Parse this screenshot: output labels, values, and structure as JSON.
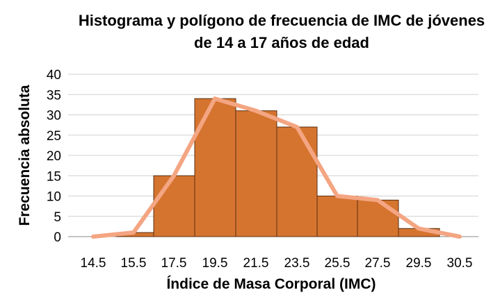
{
  "chart_data": {
    "type": "bar",
    "title_line1": "Histograma y polígono de frecuencia de IMC de jóvenes",
    "title_line2": "de 14 a 17 años de edad",
    "xlabel": "Índice de Masa Corporal (IMC)",
    "ylabel": "Frecuencia absoluta",
    "ylim": [
      0,
      40
    ],
    "yticks": [
      0,
      5,
      10,
      15,
      20,
      25,
      30,
      35,
      40
    ],
    "xticks": [
      "14.5",
      "15.5",
      "17.5",
      "19.5",
      "21.5",
      "23.5",
      "25.5",
      "27.5",
      "29.5",
      "30.5"
    ],
    "grid": true,
    "legend": "none",
    "histogram": {
      "name": "",
      "color": "#D5742F",
      "values": [
        1,
        15,
        34,
        31,
        27,
        10,
        9,
        2
      ]
    },
    "polygon": {
      "name": "",
      "color": "#F4A582",
      "values": [
        0,
        1,
        15,
        34,
        31,
        27,
        10,
        9,
        2,
        0
      ]
    }
  }
}
